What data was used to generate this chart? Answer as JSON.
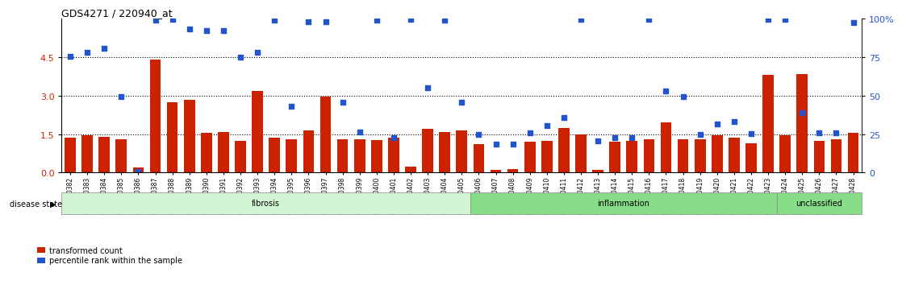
{
  "title": "GDS4271 / 220940_at",
  "samples": [
    "GSM380382",
    "GSM380383",
    "GSM380384",
    "GSM380385",
    "GSM380386",
    "GSM380387",
    "GSM380388",
    "GSM380389",
    "GSM380390",
    "GSM380391",
    "GSM380392",
    "GSM380393",
    "GSM380394",
    "GSM380395",
    "GSM380396",
    "GSM380397",
    "GSM380398",
    "GSM380399",
    "GSM380400",
    "GSM380401",
    "GSM380402",
    "GSM380403",
    "GSM380404",
    "GSM380405",
    "GSM380406",
    "GSM380407",
    "GSM380408",
    "GSM380409",
    "GSM380410",
    "GSM380411",
    "GSM380412",
    "GSM380413",
    "GSM380414",
    "GSM380415",
    "GSM380416",
    "GSM380417",
    "GSM380418",
    "GSM380419",
    "GSM380420",
    "GSM380421",
    "GSM380422",
    "GSM380423",
    "GSM380424",
    "GSM380425",
    "GSM380426",
    "GSM380427",
    "GSM380428"
  ],
  "bar_values": [
    1.35,
    1.45,
    1.4,
    1.3,
    0.2,
    4.4,
    2.75,
    2.85,
    1.55,
    1.58,
    1.25,
    3.2,
    1.35,
    1.3,
    1.65,
    2.95,
    1.3,
    1.3,
    1.28,
    1.35,
    0.22,
    1.7,
    1.6,
    1.65,
    1.1,
    0.12,
    0.15,
    1.2,
    1.25,
    1.75,
    1.5,
    0.12,
    1.2,
    1.25,
    1.3,
    1.95,
    1.3,
    1.3,
    1.45,
    1.35,
    1.15,
    3.8,
    1.45,
    3.85,
    1.25,
    1.3,
    1.55
  ],
  "dot_values": [
    4.55,
    4.7,
    4.85,
    2.96,
    0.05,
    5.96,
    5.97,
    5.6,
    5.55,
    5.55,
    4.5,
    4.7,
    5.95,
    2.6,
    5.88,
    5.88,
    2.75,
    1.6,
    5.95,
    1.35,
    5.97,
    3.32,
    5.95,
    2.75,
    1.5,
    1.1,
    1.1,
    1.55,
    1.85,
    2.15,
    5.97,
    1.25,
    1.38,
    1.38,
    5.97,
    3.2,
    2.98,
    1.5,
    1.9,
    2.0,
    1.52,
    5.97,
    5.97,
    2.35,
    1.55,
    1.55,
    5.85
  ],
  "disease_groups": [
    {
      "label": "fibrosis",
      "start": 0,
      "end": 24,
      "color": "#d4f5d4"
    },
    {
      "label": "inflammation",
      "start": 24,
      "end": 42,
      "color": "#88dd88"
    },
    {
      "label": "unclassified",
      "start": 42,
      "end": 47,
      "color": "#88dd88"
    }
  ],
  "bar_color": "#cc2200",
  "dot_color": "#2255cc",
  "ylim_left": [
    0,
    6
  ],
  "ylim_right": [
    0,
    100
  ],
  "yticks_left": [
    0,
    1.5,
    3.0,
    4.5
  ],
  "yticks_right": [
    0,
    25,
    50,
    75,
    100
  ],
  "hlines": [
    1.5,
    3.0,
    4.5
  ]
}
